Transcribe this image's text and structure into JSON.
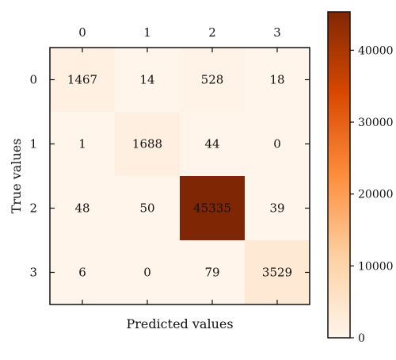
{
  "chart_data": {
    "type": "heatmap",
    "xlabel": "Predicted values",
    "ylabel": "True values",
    "x_categories": [
      "0",
      "1",
      "2",
      "3"
    ],
    "y_categories": [
      "0",
      "1",
      "2",
      "3"
    ],
    "x_tick_position": "top",
    "matrix": [
      [
        1467,
        14,
        528,
        18
      ],
      [
        1,
        1688,
        44,
        0
      ],
      [
        48,
        50,
        45335,
        39
      ],
      [
        6,
        0,
        79,
        3529
      ]
    ],
    "colorbar": {
      "min": 0,
      "max": 45335,
      "ticks": [
        "0",
        "10000",
        "20000",
        "30000",
        "40000"
      ],
      "tick_values": [
        0,
        10000,
        20000,
        30000,
        40000
      ],
      "colormap": [
        "#fff5eb",
        "#fdd0a2",
        "#fd8d3c",
        "#d94801",
        "#7f2704"
      ]
    }
  }
}
